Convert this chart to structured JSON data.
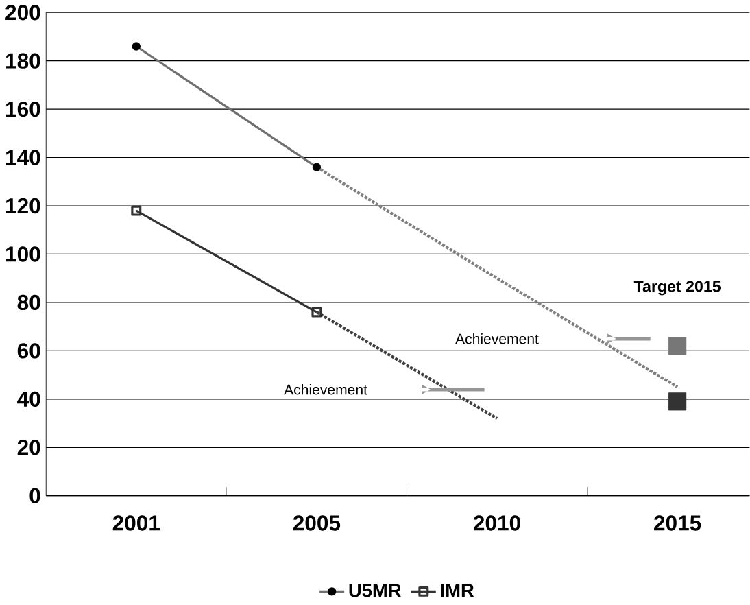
{
  "chart_data": {
    "type": "line",
    "categories": [
      "2001",
      "2005",
      "2010",
      "2015"
    ],
    "series": [
      {
        "name": "U5MR",
        "color": "#707070",
        "values": [
          186,
          136,
          null,
          null
        ],
        "marker": "circle",
        "line_style": "solid"
      },
      {
        "name": "IMR",
        "color": "#333333",
        "values": [
          118,
          76,
          null,
          null
        ],
        "marker": "square",
        "line_style": "solid"
      },
      {
        "color": "#808080",
        "values": [
          null,
          136,
          90,
          45
        ],
        "marker": "none",
        "line_style": "dotted"
      },
      {
        "color": "#404040",
        "values": [
          null,
          76,
          32,
          null
        ],
        "marker": "none",
        "line_style": "dotted"
      },
      {
        "type": "scatter",
        "color": "#777777",
        "values": [
          null,
          null,
          null,
          62
        ],
        "marker": "square"
      },
      {
        "type": "scatter",
        "color": "#333333",
        "values": [
          null,
          null,
          null,
          39
        ],
        "marker": "square"
      }
    ],
    "ylim": [
      0,
      200
    ],
    "yticks": [
      0,
      20,
      40,
      60,
      80,
      100,
      120,
      140,
      160,
      180,
      200
    ],
    "grid": "y",
    "legend": "bottom",
    "annotations": [
      "Target 2015",
      "Achievement",
      "Achievement"
    ]
  }
}
